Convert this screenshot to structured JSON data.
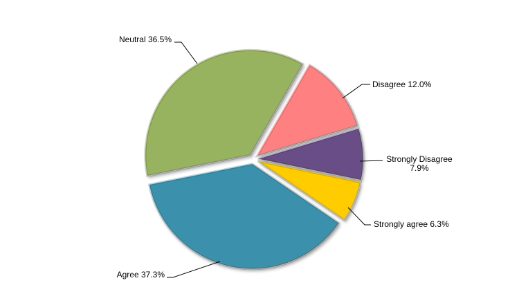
{
  "chart_data": {
    "type": "pie",
    "title": "",
    "legend": "none",
    "slices": [
      {
        "label": "Disagree",
        "value": 12.0,
        "display": "12.0%",
        "color": "#FF8080"
      },
      {
        "label": "Strongly Disagree",
        "value": 7.9,
        "display": "7.9%",
        "color": "#674E86"
      },
      {
        "label": "Strongly agree",
        "value": 6.3,
        "display": "6.3%",
        "color": "#FFCC00"
      },
      {
        "label": "Agree",
        "value": 37.3,
        "display": "37.3%",
        "color": "#3A90AB"
      },
      {
        "label": "Neutral",
        "value": 36.5,
        "display": "36.5%",
        "color": "#97B35E"
      }
    ]
  }
}
